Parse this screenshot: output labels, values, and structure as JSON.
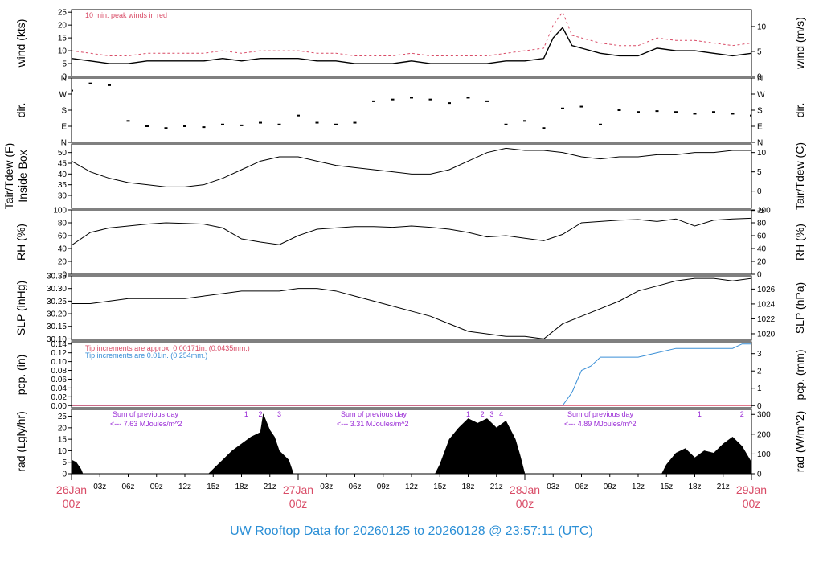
{
  "footer_title": "UW Rooftop Data for 20260125  to  20260128 @ 23:57:11  (UTC)",
  "notes": {
    "wind": "10 min. peak winds in red",
    "pcp_red": "Tip increments are approx. 0.00171in. (0.0435mm.)",
    "pcp_blue": "Tip increments are 0.01in. (0.254mm.)",
    "rad_sum_label": "Sum of previous day",
    "rad_sums": [
      "<--- 7.63 MJoules/m^2",
      "<--- 3.31 MJoules/m^2",
      "<--- 4.89 MJoules/m^2"
    ]
  },
  "colors": {
    "axis": "#000000",
    "accent_red": "#d94c67",
    "accent_blue": "#3a8fd6",
    "accent_purple": "#9a2bd6",
    "footer": "#2b8fd6"
  },
  "chart_data": [
    {
      "type": "line",
      "panel": "wind",
      "ylabel": "wind (kts)",
      "ylabel_right": "wind (m/s)",
      "yticks": [
        "0",
        "5",
        "10",
        "15",
        "20",
        "25"
      ],
      "yticks_right": [
        "0",
        "5",
        "10"
      ],
      "ylim": [
        0,
        26
      ],
      "series": [
        {
          "key": "avg",
          "x": [
            0,
            2,
            4,
            6,
            8,
            10,
            12,
            14,
            16,
            18,
            20,
            22,
            24,
            26,
            28,
            30,
            32,
            34,
            36,
            38,
            40,
            42,
            44,
            46,
            48,
            50,
            51,
            52,
            53,
            54,
            56,
            58,
            60,
            62,
            64,
            66,
            68,
            70,
            72
          ],
          "values": [
            7,
            6,
            5,
            5,
            6,
            6,
            6,
            6,
            7,
            6,
            7,
            7,
            7,
            6,
            6,
            5,
            5,
            5,
            6,
            5,
            5,
            5,
            5,
            6,
            6,
            7,
            15,
            19,
            12,
            11,
            9,
            8,
            8,
            11,
            10,
            10,
            9,
            8,
            9
          ]
        },
        {
          "key": "peak",
          "x": [
            0,
            2,
            4,
            6,
            8,
            10,
            12,
            14,
            16,
            18,
            20,
            22,
            24,
            26,
            28,
            30,
            32,
            34,
            36,
            38,
            40,
            42,
            44,
            46,
            48,
            50,
            51,
            52,
            53,
            54,
            56,
            58,
            60,
            62,
            64,
            66,
            68,
            70,
            72
          ],
          "values": [
            10,
            9,
            8,
            8,
            9,
            9,
            9,
            9,
            10,
            9,
            10,
            10,
            10,
            9,
            9,
            8,
            8,
            8,
            9,
            8,
            8,
            8,
            8,
            9,
            10,
            11,
            20,
            25,
            16,
            15,
            13,
            12,
            12,
            15,
            14,
            14,
            13,
            12,
            13
          ]
        }
      ]
    },
    {
      "type": "scatter",
      "panel": "dir",
      "ylabel": "dir.",
      "ylabel_right": "dir.",
      "yticks": [
        "N",
        "E",
        "S",
        "W",
        "N"
      ],
      "ylim": [
        0,
        360
      ],
      "series": [
        {
          "x": [
            0,
            2,
            4,
            6,
            8,
            10,
            12,
            14,
            16,
            18,
            20,
            22,
            24,
            26,
            28,
            30,
            32,
            34,
            36,
            38,
            40,
            42,
            44,
            46,
            48,
            50,
            52,
            54,
            56,
            58,
            60,
            62,
            64,
            66,
            68,
            70,
            72
          ],
          "values": [
            290,
            330,
            320,
            120,
            90,
            80,
            90,
            85,
            100,
            95,
            110,
            100,
            150,
            110,
            100,
            110,
            230,
            240,
            250,
            240,
            220,
            250,
            230,
            100,
            120,
            80,
            190,
            200,
            100,
            180,
            170,
            175,
            170,
            160,
            170,
            160,
            150
          ]
        }
      ]
    },
    {
      "type": "line",
      "panel": "temp",
      "ylabel": "Tair/Tdew (F)",
      "ylabel2": "Inside Box",
      "ylabel_right": "Tair/Tdew (C)",
      "yticks": [
        "30",
        "35",
        "40",
        "45",
        "50"
      ],
      "yticks_right": [
        "-5",
        "0",
        "5",
        "10"
      ],
      "ylim": [
        24,
        54
      ],
      "series": [
        {
          "x": [
            0,
            2,
            4,
            6,
            8,
            10,
            12,
            14,
            16,
            18,
            20,
            22,
            24,
            26,
            28,
            30,
            32,
            34,
            36,
            38,
            40,
            42,
            44,
            46,
            48,
            50,
            52,
            54,
            56,
            58,
            60,
            62,
            64,
            66,
            68,
            70,
            72
          ],
          "values": [
            46,
            41,
            38,
            36,
            35,
            34,
            34,
            35,
            38,
            42,
            46,
            48,
            48,
            46,
            44,
            43,
            42,
            41,
            40,
            40,
            42,
            46,
            50,
            52,
            51,
            51,
            50,
            48,
            47,
            48,
            48,
            49,
            49,
            50,
            50,
            51,
            51
          ]
        }
      ]
    },
    {
      "type": "line",
      "panel": "rh",
      "ylabel": "RH (%)",
      "ylabel_right": "RH (%)",
      "yticks": [
        "0",
        "20",
        "40",
        "60",
        "80",
        "100"
      ],
      "yticks_right": [
        "0",
        "20",
        "40",
        "60",
        "80",
        "100"
      ],
      "ylim": [
        0,
        100
      ],
      "series": [
        {
          "x": [
            0,
            2,
            4,
            6,
            8,
            10,
            12,
            14,
            16,
            18,
            20,
            22,
            24,
            26,
            28,
            30,
            32,
            34,
            36,
            38,
            40,
            42,
            44,
            46,
            48,
            50,
            52,
            54,
            56,
            58,
            60,
            62,
            64,
            66,
            68,
            70,
            72
          ],
          "values": [
            45,
            65,
            72,
            75,
            78,
            80,
            79,
            78,
            72,
            55,
            50,
            46,
            60,
            70,
            72,
            74,
            74,
            73,
            75,
            73,
            70,
            65,
            58,
            60,
            56,
            52,
            62,
            80,
            82,
            84,
            85,
            82,
            86,
            75,
            84,
            86,
            87
          ]
        }
      ]
    },
    {
      "type": "line",
      "panel": "slp",
      "ylabel": "SLP (inHg)",
      "ylabel_right": "SLP (hPa)",
      "yticks": [
        "30.10",
        "30.15",
        "30.20",
        "30.25",
        "30.30",
        "30.35"
      ],
      "yticks_right": [
        "1020",
        "1022",
        "1024",
        "1026"
      ],
      "ylim": [
        30.095,
        30.35
      ],
      "series": [
        {
          "x": [
            0,
            2,
            4,
            6,
            8,
            10,
            12,
            14,
            16,
            18,
            20,
            22,
            24,
            26,
            28,
            30,
            32,
            34,
            36,
            38,
            40,
            42,
            44,
            46,
            48,
            50,
            52,
            54,
            56,
            58,
            60,
            62,
            64,
            66,
            68,
            70,
            72
          ],
          "values": [
            30.24,
            30.24,
            30.25,
            30.26,
            30.26,
            30.26,
            30.26,
            30.27,
            30.28,
            30.29,
            30.29,
            30.29,
            30.3,
            30.3,
            30.29,
            30.27,
            30.25,
            30.23,
            30.21,
            30.19,
            30.16,
            30.13,
            30.12,
            30.11,
            30.11,
            30.1,
            30.16,
            30.19,
            30.22,
            30.25,
            30.29,
            30.31,
            30.33,
            30.34,
            30.34,
            30.33,
            30.34
          ]
        }
      ]
    },
    {
      "type": "line",
      "panel": "pcp",
      "ylabel": "pcp. (in)",
      "ylabel_right": "pcp. (mm)",
      "yticks": [
        "0.00",
        "0.02",
        "0.04",
        "0.06",
        "0.08",
        "0.10",
        "0.12",
        "0.14"
      ],
      "yticks_right": [
        "0",
        "1",
        "2",
        "3"
      ],
      "ylim": [
        -0.005,
        0.145
      ],
      "series": [
        {
          "key": "blue",
          "x": [
            0,
            10,
            20,
            30,
            40,
            50,
            52,
            53,
            54,
            55,
            56,
            60,
            62,
            64,
            66,
            70,
            71,
            72
          ],
          "values": [
            0,
            0,
            0,
            0,
            0,
            0,
            0,
            0.03,
            0.08,
            0.09,
            0.11,
            0.11,
            0.12,
            0.13,
            0.13,
            0.13,
            0.14,
            0.14
          ]
        },
        {
          "key": "red",
          "x": [
            0,
            72
          ],
          "values": [
            0,
            0
          ]
        }
      ]
    },
    {
      "type": "area",
      "panel": "rad",
      "ylabel": "rad (Lgly/hr)",
      "ylabel_right": "rad (W/m^2)",
      "yticks": [
        "0",
        "5",
        "10",
        "15",
        "20",
        "25"
      ],
      "yticks_right": [
        "0",
        "100",
        "200",
        "300"
      ],
      "ylim": [
        0,
        28
      ],
      "markers": [
        {
          "label": "1",
          "x": 18.5
        },
        {
          "label": "2",
          "x": 20
        },
        {
          "label": "3",
          "x": 22
        },
        {
          "label": "1",
          "x": 42
        },
        {
          "label": "2",
          "x": 43.5
        },
        {
          "label": "3",
          "x": 44.5
        },
        {
          "label": "4",
          "x": 45.5
        },
        {
          "label": "1",
          "x": 66.5
        },
        {
          "label": "2",
          "x": 71
        }
      ],
      "series": [
        {
          "x": [
            0,
            0.5,
            1,
            1.2,
            14.5,
            15,
            16,
            17,
            18,
            19,
            19.5,
            20,
            20.3,
            21,
            21.5,
            22,
            22.5,
            23,
            23.5,
            38.5,
            39,
            40,
            41,
            42,
            43,
            44,
            45,
            46,
            47,
            47.5,
            48,
            62.5,
            63,
            64,
            65,
            66,
            67,
            68,
            69,
            70,
            71,
            72
          ],
          "values": [
            6,
            5,
            2,
            0,
            0,
            2,
            6,
            10,
            13,
            16,
            17,
            18,
            26,
            19,
            16,
            10,
            8,
            6,
            0,
            0,
            4,
            15,
            20,
            24,
            22,
            24,
            20,
            23,
            15,
            8,
            0,
            0,
            4,
            9,
            11,
            7,
            10,
            9,
            13,
            16,
            12,
            5
          ]
        }
      ]
    }
  ],
  "x_axis": {
    "ticks": [
      "03z",
      "06z",
      "09z",
      "12z",
      "15z",
      "18z",
      "21z",
      "03z",
      "06z",
      "09z",
      "12z",
      "15z",
      "18z",
      "21z",
      "03z",
      "06z",
      "09z",
      "12z",
      "15z",
      "18z",
      "21z"
    ],
    "day_labels": [
      {
        "date": "26Jan",
        "hour": "00z"
      },
      {
        "date": "27Jan",
        "hour": "00z"
      },
      {
        "date": "28Jan",
        "hour": "00z"
      },
      {
        "date": "29Jan",
        "hour": "00z"
      }
    ]
  }
}
